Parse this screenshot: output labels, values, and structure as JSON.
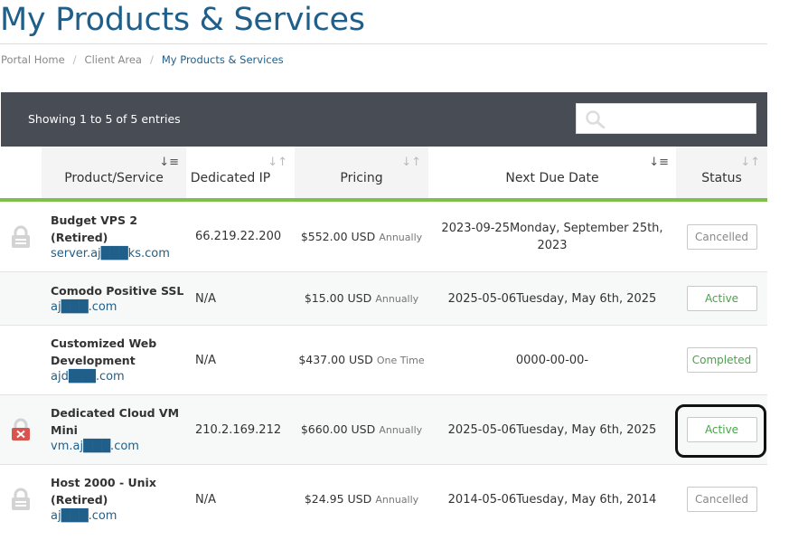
{
  "page": {
    "title": "My Products & Services"
  },
  "breadcrumb": [
    {
      "label": "Portal Home"
    },
    {
      "label": "Client Area"
    },
    {
      "label": "My Products & Services"
    }
  ],
  "table_toolbar": {
    "info": "Showing 1 to 5 of 5 entries",
    "search_placeholder": "",
    "search_icon": "search-icon"
  },
  "columns": [
    {
      "label": "Product/Service"
    },
    {
      "label": "Dedicated IP"
    },
    {
      "label": "Pricing"
    },
    {
      "label": "Next Due Date"
    },
    {
      "label": "Status"
    }
  ],
  "rows": [
    {
      "icon": "lock-icon",
      "product": "Budget VPS 2 (Retired)",
      "domain": "server.aj███ks.com",
      "ip": "66.219.22.200",
      "price": "$552.00 USD",
      "cycle": "Annually",
      "due": "2023-09-25Monday, September 25th, 2023",
      "status": "Cancelled"
    },
    {
      "icon": "",
      "product": "Comodo Positive SSL",
      "domain": "aj███.com",
      "ip": "N/A",
      "price": "$15.00 USD",
      "cycle": "Annually",
      "due": "2025-05-06Tuesday, May 6th, 2025",
      "status": "Active"
    },
    {
      "icon": "",
      "product": "Customized Web Development",
      "domain": "ajd███.com",
      "ip": "N/A",
      "price": "$437.00 USD",
      "cycle": "One Time",
      "due": "0000-00-00-",
      "status": "Completed"
    },
    {
      "icon": "suspended-icon",
      "product": "Dedicated Cloud VM Mini",
      "domain": "vm.aj███.com",
      "ip": "210.2.169.212",
      "price": "$660.00 USD",
      "cycle": "Annually",
      "due": "2025-05-06Tuesday, May 6th, 2025",
      "status": "Active"
    },
    {
      "icon": "lock-icon",
      "product": "Host 2000 - Unix (Retired)",
      "domain": "aj███.com",
      "ip": "N/A",
      "price": "$24.95 USD",
      "cycle": "Annually",
      "due": "2014-05-06Tuesday, May 6th, 2014",
      "status": "Cancelled"
    }
  ],
  "colors": {
    "brand": "#1f5f8a",
    "toolbar": "#474c55",
    "accent_green": "#7fbf4d",
    "status_active": "#46a546"
  }
}
